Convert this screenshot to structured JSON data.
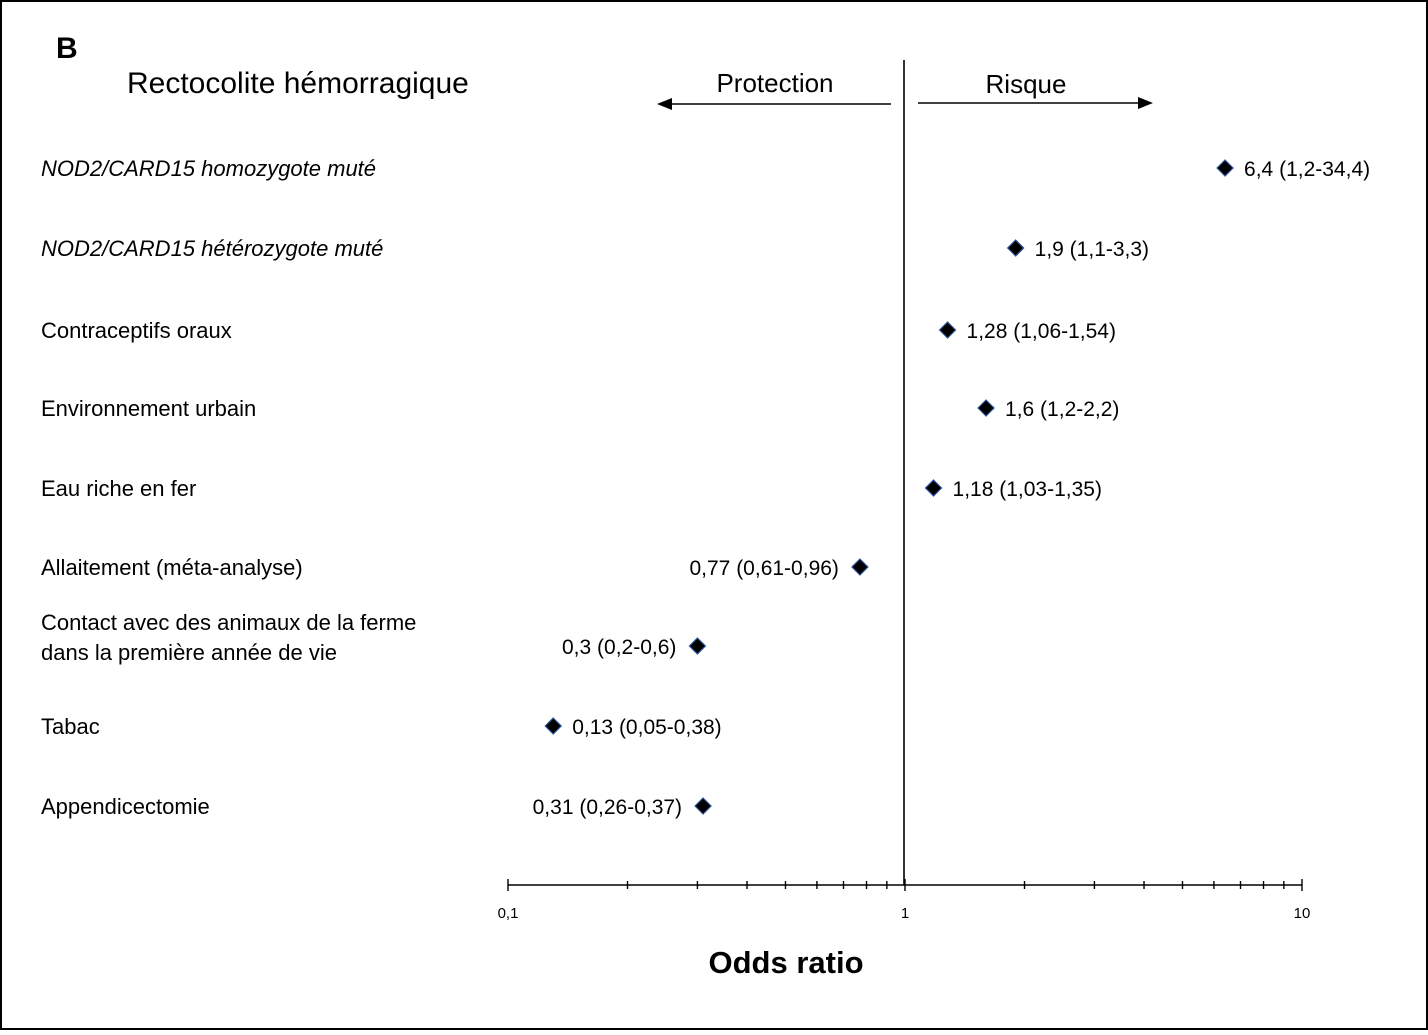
{
  "chart_data": {
    "type": "scatter",
    "panel_letter": "B",
    "title": "Rectocolite hémorragique",
    "direction_labels": {
      "left": "Protection",
      "right": "Risque"
    },
    "xlabel": "Odds ratio",
    "x_scale": "log",
    "xlim": [
      0.1,
      10
    ],
    "reference_line": 1,
    "x_ticks": [
      {
        "value": 0.1,
        "label": "0,1"
      },
      {
        "value": 1,
        "label": "1"
      },
      {
        "value": 10,
        "label": "10"
      }
    ],
    "rows": [
      {
        "label_lines": [
          "NOD2/CARD15 homozygote muté"
        ],
        "italic": true,
        "or": 6.4,
        "ci": [
          1.2,
          34.4
        ],
        "value_label": "6,4 (1,2-34,4)",
        "label_side": "right"
      },
      {
        "label_lines": [
          "NOD2/CARD15 hétérozygote muté"
        ],
        "italic": true,
        "or": 1.9,
        "ci": [
          1.1,
          3.3
        ],
        "value_label": "1,9 (1,1-3,3)",
        "label_side": "right"
      },
      {
        "label_lines": [
          "Contraceptifs oraux"
        ],
        "italic": false,
        "or": 1.28,
        "ci": [
          1.06,
          1.54
        ],
        "value_label": "1,28 (1,06-1,54)",
        "label_side": "right"
      },
      {
        "label_lines": [
          "Environnement urbain"
        ],
        "italic": false,
        "or": 1.6,
        "ci": [
          1.2,
          2.2
        ],
        "value_label": "1,6 (1,2-2,2)",
        "label_side": "right"
      },
      {
        "label_lines": [
          "Eau riche en fer"
        ],
        "italic": false,
        "or": 1.18,
        "ci": [
          1.03,
          1.35
        ],
        "value_label": "1,18 (1,03-1,35)",
        "label_side": "right"
      },
      {
        "label_lines": [
          "Allaitement (méta-analyse)"
        ],
        "italic": false,
        "or": 0.77,
        "ci": [
          0.61,
          0.96
        ],
        "value_label": "0,77 (0,61-0,96)",
        "label_side": "left"
      },
      {
        "label_lines": [
          "Contact avec des animaux de la ferme",
          "dans la première année de vie"
        ],
        "italic": false,
        "or": 0.3,
        "ci": [
          0.2,
          0.6
        ],
        "value_label": "0,3 (0,2-0,6)",
        "label_side": "left"
      },
      {
        "label_lines": [
          "Tabac"
        ],
        "italic": false,
        "or": 0.13,
        "ci": [
          0.05,
          0.38
        ],
        "value_label": "0,13 (0,05-0,38)",
        "label_side": "right"
      },
      {
        "label_lines": [
          "Appendicectomie"
        ],
        "italic": false,
        "or": 0.31,
        "ci": [
          0.26,
          0.37
        ],
        "value_label": "0,31 (0,26-0,37)",
        "label_side": "left"
      }
    ],
    "marker_color": "#000000",
    "marker_edge_color": "#2f5597"
  }
}
